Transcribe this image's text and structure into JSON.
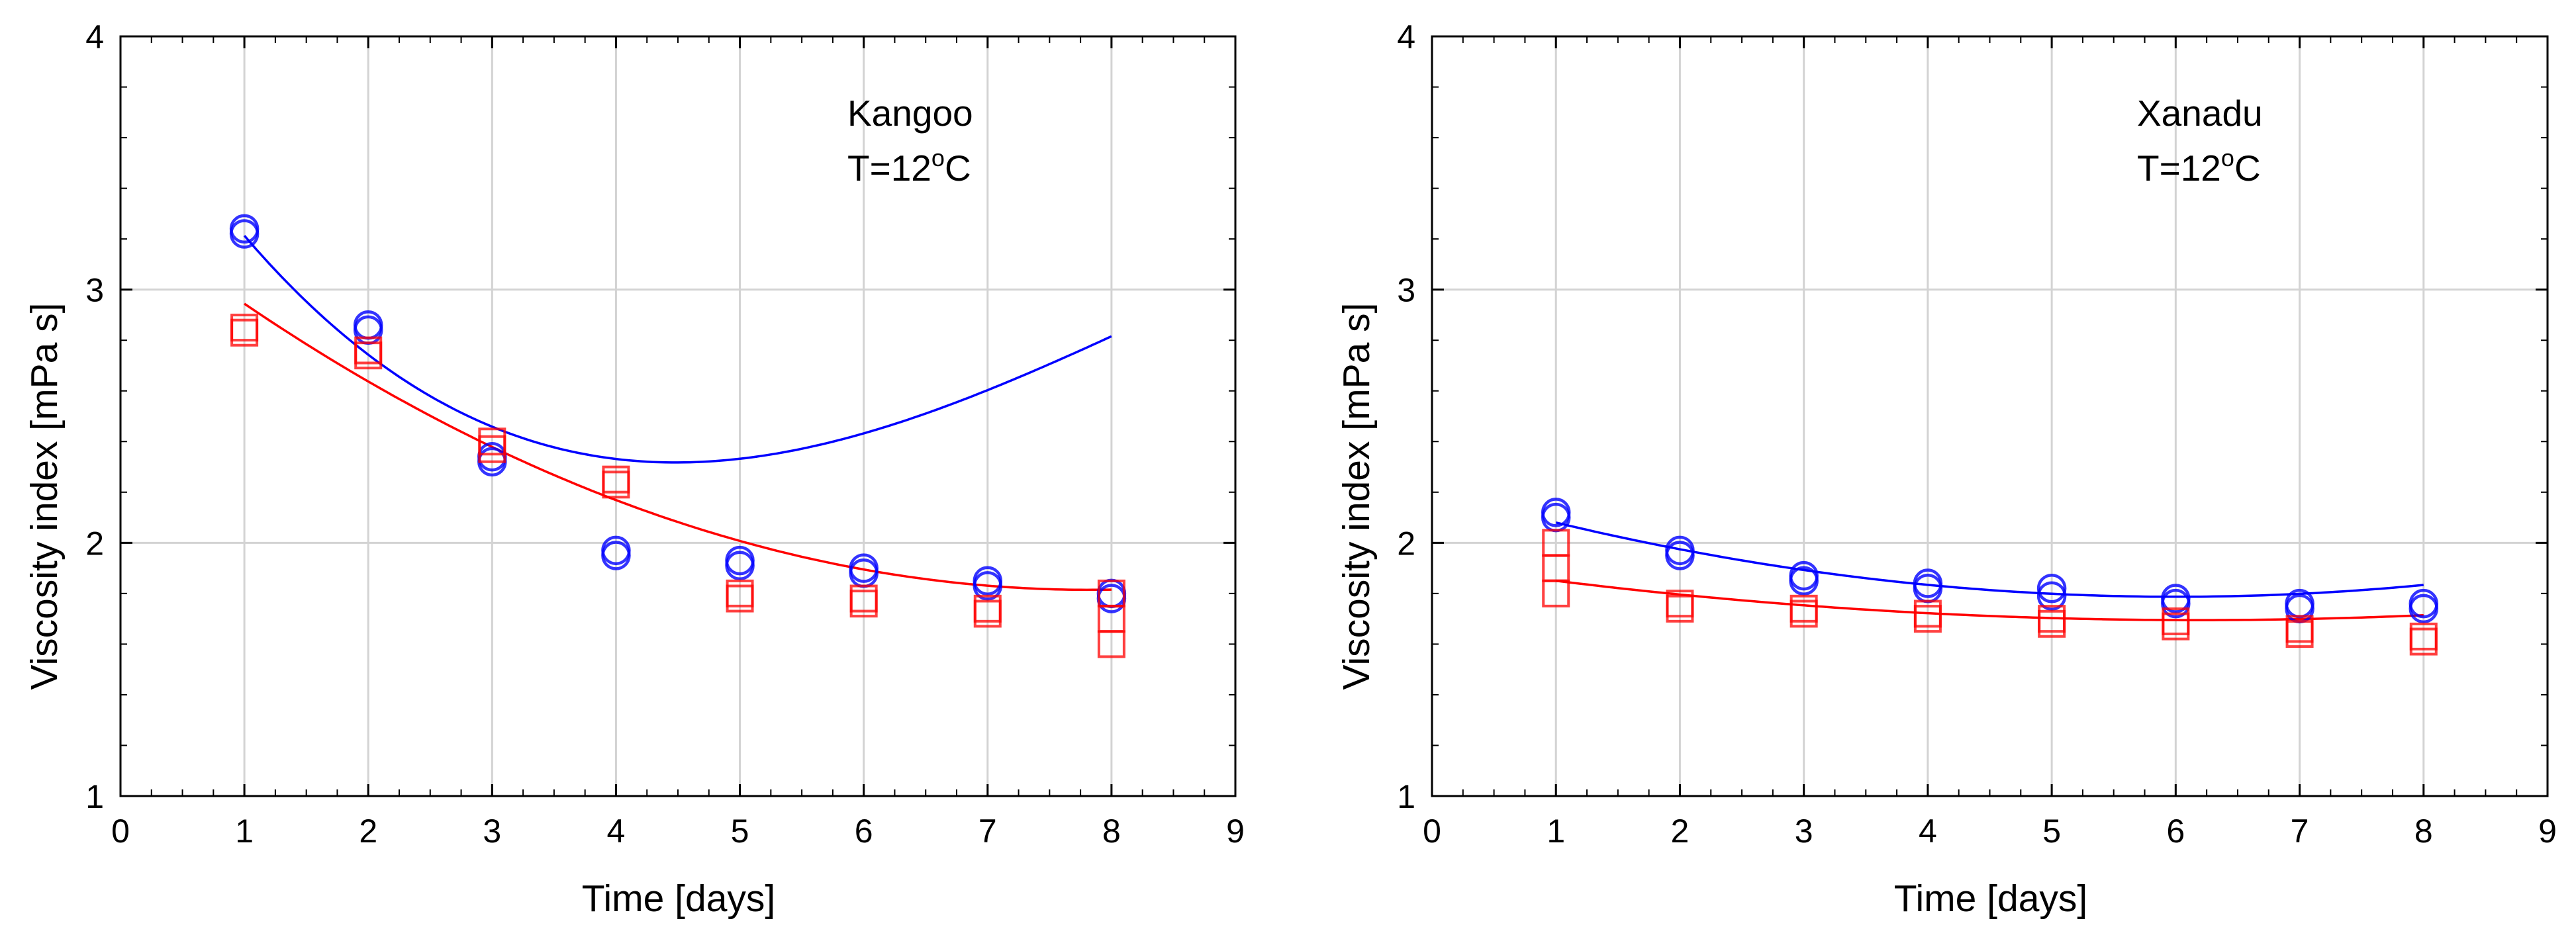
{
  "chart_data": [
    {
      "type": "scatter",
      "name": "kangoo",
      "title": "",
      "annotation_line1": "Kangoo",
      "annotation_line2_prefix": "T=12",
      "annotation_line2_sup": "o",
      "annotation_line2_suffix": "C",
      "xlabel": "Time [days]",
      "ylabel": "Viscosity index [mPa s]",
      "xlim": [
        0,
        9
      ],
      "ylim": [
        1,
        4
      ],
      "xticks": [
        0,
        1,
        2,
        3,
        4,
        5,
        6,
        7,
        8,
        9
      ],
      "yticks": [
        1,
        2,
        3,
        4
      ],
      "grid": true,
      "series": [
        {
          "name": "circles",
          "marker": "circle",
          "color": "#0000ff",
          "points": [
            [
              1,
              3.22
            ],
            [
              1,
              3.24
            ],
            [
              2,
              2.84
            ],
            [
              2,
              2.86
            ],
            [
              3,
              2.32
            ],
            [
              3,
              2.34
            ],
            [
              4,
              1.95
            ],
            [
              4,
              1.97
            ],
            [
              5,
              1.91
            ],
            [
              5,
              1.93
            ],
            [
              6,
              1.88
            ],
            [
              6,
              1.9
            ],
            [
              7,
              1.83
            ],
            [
              7,
              1.85
            ],
            [
              8,
              1.78
            ],
            [
              8,
              1.8
            ]
          ],
          "fit": [
            3.898,
            -0.8017,
            0.1217,
            -0.0048
          ]
        },
        {
          "name": "squares",
          "marker": "square",
          "color": "#ff0000",
          "points": [
            [
              1,
              2.83
            ],
            [
              1,
              2.85
            ],
            [
              2,
              2.74
            ],
            [
              2,
              2.76
            ],
            [
              3,
              2.37
            ],
            [
              3,
              2.4
            ],
            [
              4,
              2.23
            ],
            [
              4,
              2.25
            ],
            [
              5,
              1.78
            ],
            [
              5,
              1.8
            ],
            [
              6,
              1.76
            ],
            [
              6,
              1.78
            ],
            [
              7,
              1.72
            ],
            [
              7,
              1.74
            ],
            [
              8,
              1.6
            ],
            [
              8,
              1.7
            ],
            [
              8,
              1.8
            ]
          ],
          "fit": [
            3.3,
            -0.38,
            0.0243,
            0
          ]
        }
      ]
    },
    {
      "type": "scatter",
      "name": "xanadu",
      "title": "",
      "annotation_line1": "Xanadu",
      "annotation_line2_prefix": "T=12",
      "annotation_line2_sup": "o",
      "annotation_line2_suffix": "C",
      "xlabel": "Time [days]",
      "ylabel": "Viscosity index [mPa s]",
      "xlim": [
        0,
        9
      ],
      "ylim": [
        1,
        4
      ],
      "xticks": [
        0,
        1,
        2,
        3,
        4,
        5,
        6,
        7,
        8,
        9
      ],
      "yticks": [
        1,
        2,
        3,
        4
      ],
      "grid": true,
      "series": [
        {
          "name": "circles",
          "marker": "circle",
          "color": "#0000ff",
          "points": [
            [
              1,
              2.1
            ],
            [
              1,
              2.12
            ],
            [
              2,
              1.95
            ],
            [
              2,
              1.97
            ],
            [
              3,
              1.85
            ],
            [
              3,
              1.87
            ],
            [
              4,
              1.82
            ],
            [
              4,
              1.84
            ],
            [
              5,
              1.79
            ],
            [
              5,
              1.82
            ],
            [
              6,
              1.76
            ],
            [
              6,
              1.78
            ],
            [
              7,
              1.74
            ],
            [
              7,
              1.76
            ],
            [
              8,
              1.74
            ],
            [
              8,
              1.76
            ]
          ],
          "fit": [
            2.2088,
            -0.1405,
            0.0117,
            0
          ]
        },
        {
          "name": "squares",
          "marker": "square",
          "color": "#ff0000",
          "points": [
            [
              1,
              1.8
            ],
            [
              1,
              1.9
            ],
            [
              1,
              2.0
            ],
            [
              2,
              1.74
            ],
            [
              2,
              1.76
            ],
            [
              3,
              1.72
            ],
            [
              3,
              1.74
            ],
            [
              4,
              1.7
            ],
            [
              4,
              1.72
            ],
            [
              5,
              1.68
            ],
            [
              5,
              1.7
            ],
            [
              6,
              1.67
            ],
            [
              6,
              1.69
            ],
            [
              7,
              1.64
            ],
            [
              7,
              1.66
            ],
            [
              8,
              1.61
            ],
            [
              8,
              1.63
            ]
          ],
          "fit": [
            1.9158,
            -0.0716,
            0.0058,
            0
          ]
        }
      ]
    }
  ]
}
